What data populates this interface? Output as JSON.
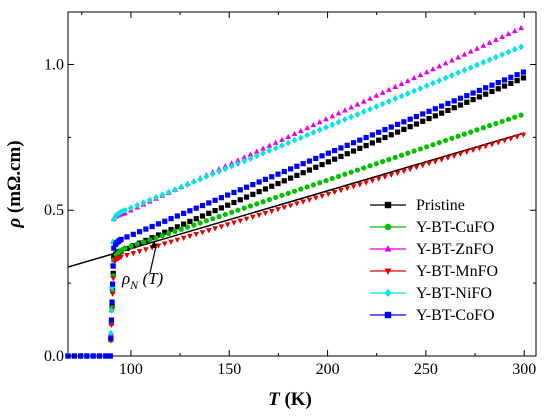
{
  "chart_data": {
    "type": "scatter",
    "xlabel": "T (K)",
    "xlabel_var": "T",
    "xlabel_unit": "(K)",
    "ylabel": "ρ (mΩ.cm)",
    "ylabel_var": "ρ",
    "ylabel_unit": "(mΩ.cm)",
    "xlim": [
      68,
      306
    ],
    "ylim": [
      0.0,
      1.18
    ],
    "xticks": [
      100,
      150,
      200,
      250,
      300
    ],
    "xtick_labels": [
      "100",
      "150",
      "200",
      "250",
      "300"
    ],
    "yticks": [
      0.0,
      0.5,
      1.0
    ],
    "ytick_labels": [
      "0.0",
      "0.5",
      "1.0"
    ],
    "grid": false,
    "legend_position": "bottom-right",
    "transition_temperature": 90,
    "series": [
      {
        "name": "Pristine",
        "marker": "square",
        "color": "#000000",
        "onset": 0.34,
        "knee_x": 95,
        "knee_y": 0.36,
        "end_y": 0.955
      },
      {
        "name": "Y-BT-CuFO",
        "marker": "circle",
        "color": "#00c000",
        "onset": 0.33,
        "knee_x": 97,
        "knee_y": 0.37,
        "end_y": 0.83
      },
      {
        "name": "Y-BT-ZnFO",
        "marker": "triangle",
        "color": "#e600e6",
        "onset": 0.47,
        "knee_x": 97,
        "knee_y": 0.49,
        "end_y": 1.13
      },
      {
        "name": "Y-BT-MnFO",
        "marker": "tridown",
        "color": "#e60000",
        "onset": 0.32,
        "knee_x": 95,
        "knee_y": 0.34,
        "end_y": 0.76
      },
      {
        "name": "Y-BT-NiFO",
        "marker": "diamond",
        "color": "#00e5e5",
        "onset": 0.47,
        "knee_x": 97,
        "knee_y": 0.5,
        "end_y": 1.065
      },
      {
        "name": "Y-BT-CoFO",
        "marker": "square",
        "color": "#0000ff",
        "onset": 0.37,
        "knee_x": 95,
        "knee_y": 0.4,
        "end_y": 0.975
      }
    ],
    "fit_line": {
      "name": "ρN (T)",
      "x": [
        68,
        300
      ],
      "y": [
        0.305,
        0.765
      ]
    },
    "annotation": {
      "text_main": "ρ",
      "text_sub": "N",
      "text_rest": " (T)",
      "arrow_to": [
        112,
        0.395
      ]
    }
  }
}
